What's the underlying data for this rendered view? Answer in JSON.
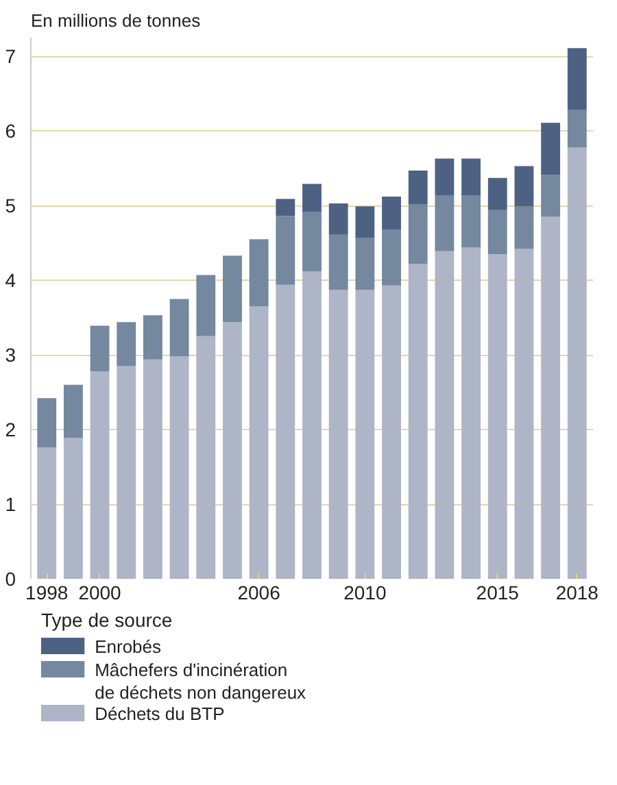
{
  "chart_data": {
    "type": "bar",
    "stacked": true,
    "ylabel": "En millions de tonnes",
    "legend_title": "Type de source",
    "x": [
      1998,
      1999,
      2000,
      2001,
      2002,
      2003,
      2004,
      2005,
      2006,
      2007,
      2008,
      2009,
      2010,
      2011,
      2012,
      2013,
      2014,
      2015,
      2016,
      2017,
      2018
    ],
    "series": [
      {
        "name": "Déchets du BTP",
        "color": "#adb5c6",
        "values": [
          1.76,
          1.89,
          2.78,
          2.85,
          2.94,
          2.98,
          3.25,
          3.44,
          3.65,
          3.94,
          4.12,
          3.87,
          3.87,
          3.93,
          4.22,
          4.39,
          4.44,
          4.35,
          4.42,
          4.85,
          5.78
        ]
      },
      {
        "name": "Mâchefers d'incinération de déchets non dangereux",
        "color": "#74889f",
        "values": [
          0.66,
          0.71,
          0.61,
          0.59,
          0.59,
          0.77,
          0.82,
          0.89,
          0.9,
          0.92,
          0.8,
          0.74,
          0.7,
          0.75,
          0.8,
          0.75,
          0.7,
          0.59,
          0.57,
          0.56,
          0.5
        ]
      },
      {
        "name": "Enrobés",
        "color": "#4d6283",
        "values": [
          null,
          null,
          null,
          null,
          null,
          null,
          null,
          null,
          null,
          0.23,
          0.37,
          0.42,
          0.42,
          0.44,
          0.45,
          0.49,
          0.49,
          0.43,
          0.54,
          0.7,
          0.83
        ]
      }
    ],
    "xlim": [
      1997.4,
      2018.6
    ],
    "xticks": [
      1998,
      2000,
      2006,
      2010,
      2015,
      2018
    ],
    "ylim": [
      0,
      7.25
    ],
    "yticks": [
      0,
      1,
      2,
      3,
      4,
      5,
      6,
      7
    ],
    "grid": "y",
    "legend": "bottom"
  }
}
